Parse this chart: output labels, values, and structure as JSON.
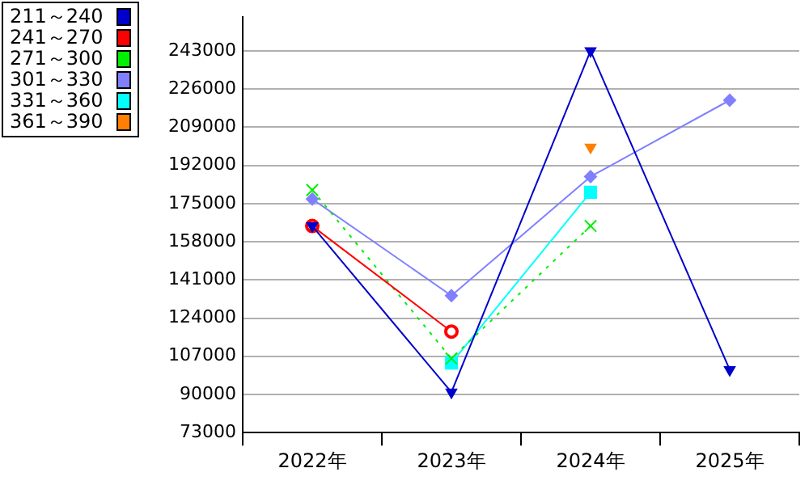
{
  "chart_data": {
    "type": "line",
    "categories": [
      "2022年",
      "2023年",
      "2024年",
      "2025年"
    ],
    "series": [
      {
        "name": "211～240",
        "color": "#0000cc",
        "values": [
          165000,
          91000,
          243000,
          101000
        ],
        "marker": "triangle"
      },
      {
        "name": "241～270",
        "color": "#ff0000",
        "values": [
          165000,
          118000,
          null,
          null
        ],
        "marker": "circle"
      },
      {
        "name": "271～300",
        "color": "#00ee00",
        "values": [
          181000,
          106000,
          165000,
          null
        ],
        "marker": "cross",
        "line_style": "dotted"
      },
      {
        "name": "301～330",
        "color": "#8080ff",
        "values": [
          177000,
          134000,
          187000,
          221000
        ],
        "marker": "diamond"
      },
      {
        "name": "331～360",
        "color": "#00ffff",
        "values": [
          null,
          104000,
          180000,
          null
        ],
        "marker": "square"
      },
      {
        "name": "361～390",
        "color": "#ff8000",
        "values": [
          null,
          null,
          200000,
          null
        ],
        "marker": "triangle"
      }
    ],
    "ylim": [
      73000,
      258000
    ],
    "yticks": [
      73000,
      90000,
      107000,
      124000,
      141000,
      158000,
      175000,
      192000,
      209000,
      226000,
      243000
    ],
    "grid": "y",
    "legend": "left"
  }
}
